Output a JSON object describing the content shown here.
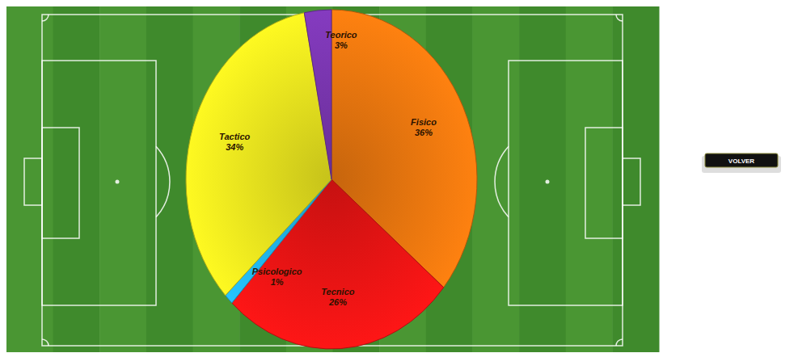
{
  "chart_data": {
    "type": "pie",
    "categories": [
      "Fisico",
      "Tecnico",
      "Psicologico",
      "Tactico",
      "Teorico"
    ],
    "values": [
      36,
      26,
      1,
      34,
      3
    ],
    "value_labels": [
      "36%",
      "26%",
      "1%",
      "34%",
      "3%"
    ],
    "colors": [
      "#e8760f",
      "#e81414",
      "#22b4ea",
      "#e8e41e",
      "#7a36b0"
    ],
    "data_labels": true
  },
  "button": {
    "label": "VOLVER"
  }
}
